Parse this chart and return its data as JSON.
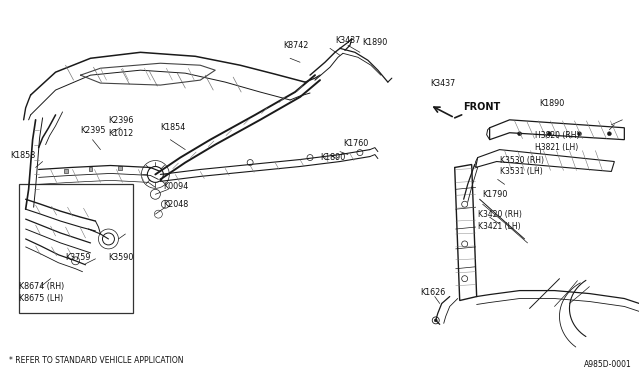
{
  "bg_color": "#ffffff",
  "fig_width": 6.4,
  "fig_height": 3.72,
  "dpi": 100,
  "footnote": "* REFER TO STANDARD VEHICLE APPLICATION",
  "diagram_id": "A985D-0001",
  "front_label": "FRONT",
  "line_color": "#1a1a1a",
  "gray_color": "#555555"
}
